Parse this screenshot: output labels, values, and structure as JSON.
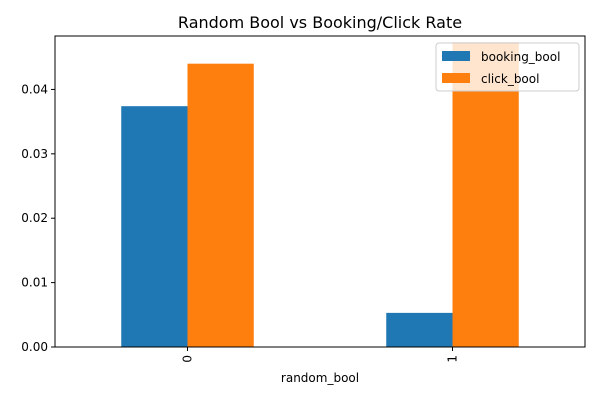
{
  "chart_data": {
    "type": "bar",
    "title": "Random Bool vs Booking/Click Rate",
    "xlabel": "random_bool",
    "ylabel": "",
    "categories": [
      "0",
      "1"
    ],
    "series": [
      {
        "name": "booking_bool",
        "values": [
          0.0374,
          0.0053
        ],
        "color": "#1f77b4"
      },
      {
        "name": "click_bool",
        "values": [
          0.044,
          0.0473
        ],
        "color": "#ff7f0e"
      }
    ],
    "ylim": [
      0,
      0.0483
    ],
    "yticks": [
      0.0,
      0.01,
      0.02,
      0.03,
      0.04
    ],
    "ytick_labels": [
      "0.00",
      "0.01",
      "0.02",
      "0.03",
      "0.04"
    ],
    "grid": false,
    "legend_position": "top-right",
    "xtick_rotation": "vertical"
  }
}
